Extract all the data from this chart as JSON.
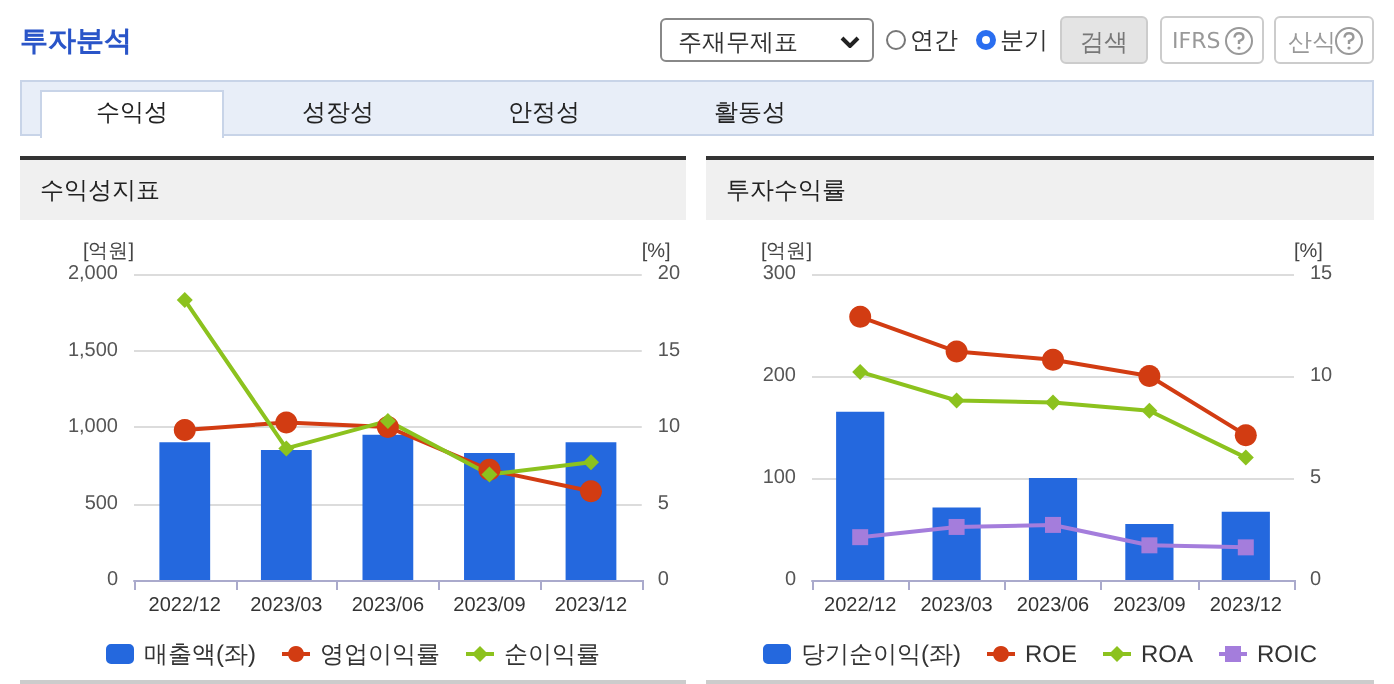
{
  "chart_data": [
    {
      "type": "other",
      "annotations": [
        "투자분석",
        "주재무제표",
        "연간",
        "분기",
        "검색",
        "IFRS",
        "산식",
        "수익성",
        "성장성",
        "안정성",
        "활동성"
      ]
    },
    {
      "type": "bar",
      "title": "수익성지표",
      "ylabel": "[억원]",
      "y2label": "[%]",
      "categories": [
        "2022/12",
        "2023/03",
        "2023/06",
        "2023/09",
        "2023/12"
      ],
      "series": [
        {
          "name": "매출액(좌)",
          "type": "bar",
          "color": "#2468de",
          "values": [
            900,
            850,
            950,
            830,
            900
          ]
        },
        {
          "name": "영업이익률",
          "type": "line",
          "axis": "y2",
          "marker": "circle",
          "color": "#d23c12",
          "values": [
            9.8,
            10.3,
            10.0,
            7.2,
            5.8
          ]
        },
        {
          "name": "순이익률",
          "type": "line",
          "axis": "y2",
          "marker": "diamond",
          "color": "#8cc21e",
          "values": [
            18.3,
            8.6,
            10.4,
            6.9,
            7.7
          ]
        }
      ],
      "ylim": [
        0,
        2000
      ],
      "yticks": [
        0,
        500,
        {
          "value": 1000,
          "label": "1,000"
        },
        {
          "value": 1500,
          "label": "1,500"
        },
        {
          "value": 2000,
          "label": "2,000"
        }
      ],
      "y2lim": [
        0,
        20
      ],
      "y2ticks": [
        0,
        5,
        10,
        15,
        20
      ],
      "grid": "y",
      "legend": "bottom"
    },
    {
      "type": "bar",
      "title": "투자수익률",
      "ylabel": "[억원]",
      "y2label": "[%]",
      "categories": [
        "2022/12",
        "2023/03",
        "2023/06",
        "2023/09",
        "2023/12"
      ],
      "series": [
        {
          "name": "당기순이익(좌)",
          "type": "bar",
          "color": "#2468de",
          "values": [
            165,
            71,
            100,
            55,
            67
          ]
        },
        {
          "name": "ROE",
          "type": "line",
          "axis": "y2",
          "marker": "circle",
          "color": "#d23c12",
          "values": [
            12.9,
            11.2,
            10.8,
            10.0,
            7.1
          ]
        },
        {
          "name": "ROA",
          "type": "line",
          "axis": "y2",
          "marker": "diamond",
          "color": "#8cc21e",
          "values": [
            10.2,
            8.8,
            8.7,
            8.3,
            6.0
          ]
        },
        {
          "name": "ROIC",
          "type": "line",
          "axis": "y2",
          "marker": "square",
          "color": "#a47ddc",
          "values": [
            2.1,
            2.6,
            2.7,
            1.7,
            1.6
          ]
        }
      ],
      "ylim": [
        0,
        300
      ],
      "yticks": [
        0,
        100,
        200,
        300
      ],
      "y2lim": [
        0,
        15
      ],
      "y2ticks": [
        0,
        5,
        10,
        15
      ],
      "grid": "y",
      "legend": "bottom"
    }
  ]
}
